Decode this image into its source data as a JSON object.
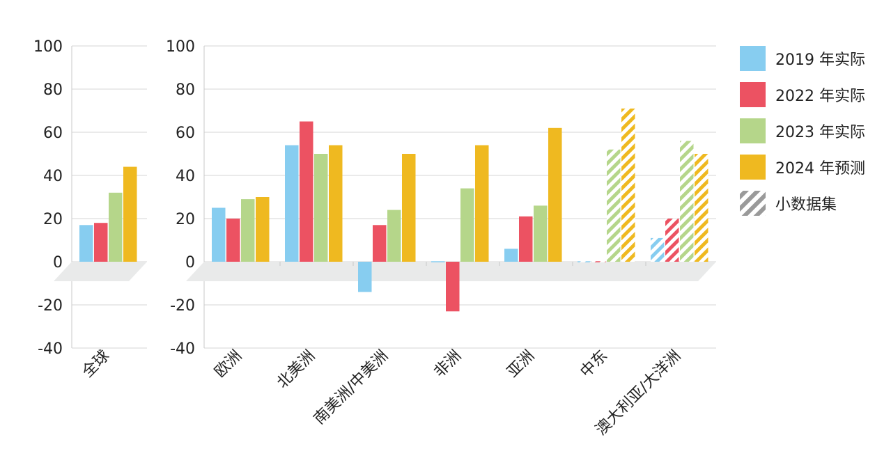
{
  "chart_data": [
    {
      "type": "bar",
      "panel": "global",
      "categories": [
        "全球"
      ],
      "series": [
        {
          "name": "2019 年实际",
          "values": [
            17
          ]
        },
        {
          "name": "2022 年实际",
          "values": [
            18
          ]
        },
        {
          "name": "2023 年实际",
          "values": [
            32
          ]
        },
        {
          "name": "2024 年预测",
          "values": [
            44
          ]
        }
      ],
      "ylim": [
        -40,
        100
      ],
      "yticks": [
        "100",
        "80",
        "60",
        "40",
        "20",
        "0",
        "-20",
        "-40"
      ],
      "grid": true
    },
    {
      "type": "bar",
      "panel": "regions",
      "categories": [
        "欧洲",
        "北美洲",
        "南美洲/中美洲",
        "非洲",
        "亚洲",
        "中东",
        "澳大利亚/大洋洲"
      ],
      "series": [
        {
          "name": "2019 年实际",
          "values": [
            25,
            54,
            -14,
            0,
            6,
            0,
            11
          ]
        },
        {
          "name": "2022 年实际",
          "values": [
            20,
            65,
            17,
            -23,
            21,
            0,
            20
          ]
        },
        {
          "name": "2023 年实际",
          "values": [
            29,
            50,
            24,
            34,
            26,
            52,
            56
          ]
        },
        {
          "name": "2024 年预测",
          "values": [
            30,
            54,
            50,
            54,
            62,
            71,
            50
          ]
        }
      ],
      "small_dataset_categories": [
        "中东",
        "澳大利亚/大洋洲"
      ],
      "ylim": [
        -40,
        100
      ],
      "yticks": [
        "100",
        "80",
        "60",
        "40",
        "20",
        "0",
        "-20",
        "-40"
      ],
      "grid": true
    }
  ],
  "legend": {
    "placement": "right",
    "items": [
      {
        "label": "2019 年实际",
        "color": "#87cdf0",
        "hatched": false
      },
      {
        "label": "2022 年实际",
        "color": "#ec5262",
        "hatched": false
      },
      {
        "label": "2023 年实际",
        "color": "#b5d68a",
        "hatched": false
      },
      {
        "label": "2024 年预测",
        "color": "#efb920",
        "hatched": false
      },
      {
        "label": "小数据集",
        "color": "#9a9a9a",
        "hatched": true
      }
    ]
  },
  "colors": {
    "series": [
      "#87cdf0",
      "#ec5262",
      "#b5d68a",
      "#efb920"
    ],
    "floor": "#e9eaea",
    "grid": "#d6d6d6"
  }
}
